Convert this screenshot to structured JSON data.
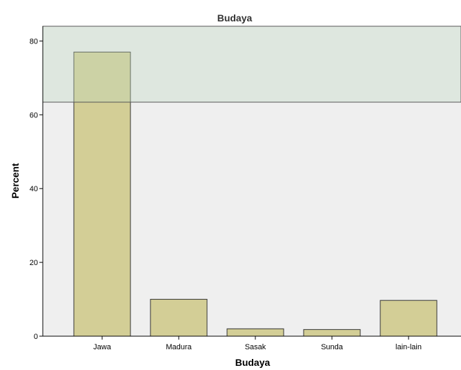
{
  "chart_data": {
    "type": "bar",
    "title": "Budaya",
    "xlabel": "Budaya",
    "ylabel": "Percent",
    "categories": [
      "Jawa",
      "Madura",
      "Sasak",
      "Sunda",
      "lain-lain"
    ],
    "values": [
      77,
      10,
      2,
      1.8,
      9.7
    ],
    "ylim": [
      0,
      84
    ],
    "yticks": [
      0,
      20,
      40,
      60,
      80
    ],
    "grid": false,
    "legend": "none",
    "colors": {
      "bar_fill": "#D3CE96",
      "bar_stroke": "#333333",
      "plot_background": "#EFEFEF",
      "title_band": "#BFD9C3"
    }
  }
}
